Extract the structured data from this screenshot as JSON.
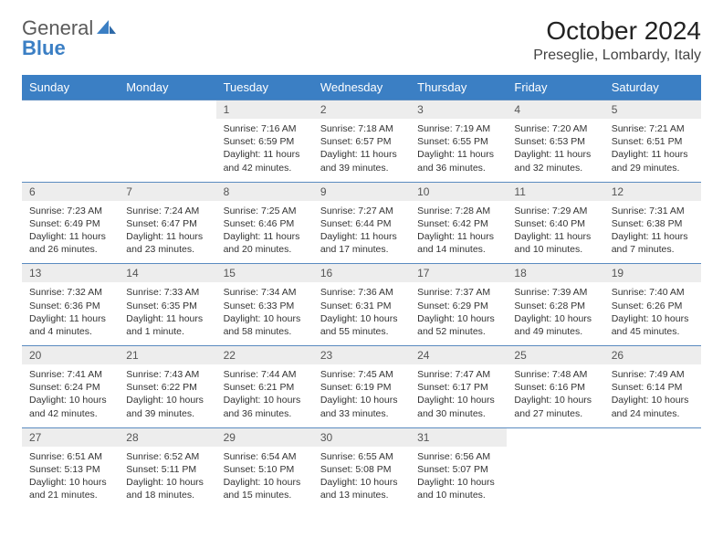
{
  "logo": {
    "text1": "General",
    "text2": "Blue"
  },
  "title": "October 2024",
  "location": "Preseglie, Lombardy, Italy",
  "colors": {
    "header_bg": "#3b7fc4",
    "header_text": "#ffffff",
    "daynum_bg": "#ededed",
    "border": "#5a8bc0",
    "logo_gray": "#5a5a5a",
    "logo_blue": "#3b7fc4"
  },
  "day_headers": [
    "Sunday",
    "Monday",
    "Tuesday",
    "Wednesday",
    "Thursday",
    "Friday",
    "Saturday"
  ],
  "weeks": [
    [
      null,
      null,
      {
        "n": "1",
        "sr": "7:16 AM",
        "ss": "6:59 PM",
        "dl": "11 hours and 42 minutes."
      },
      {
        "n": "2",
        "sr": "7:18 AM",
        "ss": "6:57 PM",
        "dl": "11 hours and 39 minutes."
      },
      {
        "n": "3",
        "sr": "7:19 AM",
        "ss": "6:55 PM",
        "dl": "11 hours and 36 minutes."
      },
      {
        "n": "4",
        "sr": "7:20 AM",
        "ss": "6:53 PM",
        "dl": "11 hours and 32 minutes."
      },
      {
        "n": "5",
        "sr": "7:21 AM",
        "ss": "6:51 PM",
        "dl": "11 hours and 29 minutes."
      }
    ],
    [
      {
        "n": "6",
        "sr": "7:23 AM",
        "ss": "6:49 PM",
        "dl": "11 hours and 26 minutes."
      },
      {
        "n": "7",
        "sr": "7:24 AM",
        "ss": "6:47 PM",
        "dl": "11 hours and 23 minutes."
      },
      {
        "n": "8",
        "sr": "7:25 AM",
        "ss": "6:46 PM",
        "dl": "11 hours and 20 minutes."
      },
      {
        "n": "9",
        "sr": "7:27 AM",
        "ss": "6:44 PM",
        "dl": "11 hours and 17 minutes."
      },
      {
        "n": "10",
        "sr": "7:28 AM",
        "ss": "6:42 PM",
        "dl": "11 hours and 14 minutes."
      },
      {
        "n": "11",
        "sr": "7:29 AM",
        "ss": "6:40 PM",
        "dl": "11 hours and 10 minutes."
      },
      {
        "n": "12",
        "sr": "7:31 AM",
        "ss": "6:38 PM",
        "dl": "11 hours and 7 minutes."
      }
    ],
    [
      {
        "n": "13",
        "sr": "7:32 AM",
        "ss": "6:36 PM",
        "dl": "11 hours and 4 minutes."
      },
      {
        "n": "14",
        "sr": "7:33 AM",
        "ss": "6:35 PM",
        "dl": "11 hours and 1 minute."
      },
      {
        "n": "15",
        "sr": "7:34 AM",
        "ss": "6:33 PM",
        "dl": "10 hours and 58 minutes."
      },
      {
        "n": "16",
        "sr": "7:36 AM",
        "ss": "6:31 PM",
        "dl": "10 hours and 55 minutes."
      },
      {
        "n": "17",
        "sr": "7:37 AM",
        "ss": "6:29 PM",
        "dl": "10 hours and 52 minutes."
      },
      {
        "n": "18",
        "sr": "7:39 AM",
        "ss": "6:28 PM",
        "dl": "10 hours and 49 minutes."
      },
      {
        "n": "19",
        "sr": "7:40 AM",
        "ss": "6:26 PM",
        "dl": "10 hours and 45 minutes."
      }
    ],
    [
      {
        "n": "20",
        "sr": "7:41 AM",
        "ss": "6:24 PM",
        "dl": "10 hours and 42 minutes."
      },
      {
        "n": "21",
        "sr": "7:43 AM",
        "ss": "6:22 PM",
        "dl": "10 hours and 39 minutes."
      },
      {
        "n": "22",
        "sr": "7:44 AM",
        "ss": "6:21 PM",
        "dl": "10 hours and 36 minutes."
      },
      {
        "n": "23",
        "sr": "7:45 AM",
        "ss": "6:19 PM",
        "dl": "10 hours and 33 minutes."
      },
      {
        "n": "24",
        "sr": "7:47 AM",
        "ss": "6:17 PM",
        "dl": "10 hours and 30 minutes."
      },
      {
        "n": "25",
        "sr": "7:48 AM",
        "ss": "6:16 PM",
        "dl": "10 hours and 27 minutes."
      },
      {
        "n": "26",
        "sr": "7:49 AM",
        "ss": "6:14 PM",
        "dl": "10 hours and 24 minutes."
      }
    ],
    [
      {
        "n": "27",
        "sr": "6:51 AM",
        "ss": "5:13 PM",
        "dl": "10 hours and 21 minutes."
      },
      {
        "n": "28",
        "sr": "6:52 AM",
        "ss": "5:11 PM",
        "dl": "10 hours and 18 minutes."
      },
      {
        "n": "29",
        "sr": "6:54 AM",
        "ss": "5:10 PM",
        "dl": "10 hours and 15 minutes."
      },
      {
        "n": "30",
        "sr": "6:55 AM",
        "ss": "5:08 PM",
        "dl": "10 hours and 13 minutes."
      },
      {
        "n": "31",
        "sr": "6:56 AM",
        "ss": "5:07 PM",
        "dl": "10 hours and 10 minutes."
      },
      null,
      null
    ]
  ]
}
